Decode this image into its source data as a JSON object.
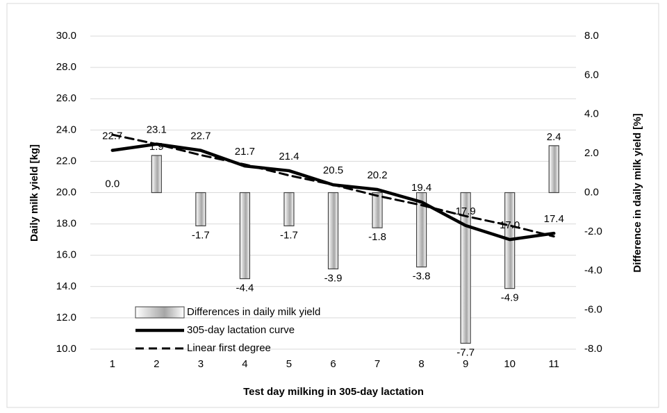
{
  "chart_data": {
    "type": "combo",
    "x_label": "Test day milking in 305-day lactation",
    "y_label": "Daily milk yield [kg]",
    "y2_label": "Difference in daily milk yield [%]",
    "categories": [
      "1",
      "2",
      "3",
      "4",
      "5",
      "6",
      "7",
      "8",
      "9",
      "10",
      "11"
    ],
    "ylim": [
      10,
      30
    ],
    "yticks": [
      {
        "value": 10,
        "label": "10.0"
      },
      {
        "value": 12,
        "label": "12.0"
      },
      {
        "value": 14,
        "label": "14.0"
      },
      {
        "value": 16,
        "label": "16.0"
      },
      {
        "value": 18,
        "label": "18.0"
      },
      {
        "value": 20,
        "label": "20.0"
      },
      {
        "value": 22,
        "label": "22.0"
      },
      {
        "value": 24,
        "label": "24.0"
      },
      {
        "value": 26,
        "label": "26.0"
      },
      {
        "value": 28,
        "label": "28.0"
      },
      {
        "value": 30,
        "label": "30.0"
      }
    ],
    "y2lim": [
      -8,
      8
    ],
    "y2ticks": [
      {
        "value": -8,
        "label": "-8.0"
      },
      {
        "value": -6,
        "label": "-6.0"
      },
      {
        "value": -4,
        "label": "-4.0"
      },
      {
        "value": -2,
        "label": "-2.0"
      },
      {
        "value": 0,
        "label": "0.0"
      },
      {
        "value": 2,
        "label": "2.0"
      },
      {
        "value": 4,
        "label": "4.0"
      },
      {
        "value": 6,
        "label": "6.0"
      },
      {
        "value": 8,
        "label": "8.0"
      }
    ],
    "grid": true,
    "legend": "lower left",
    "series": [
      {
        "name": "Differences in daily milk yield",
        "type": "bar",
        "axis": "y2",
        "color": "#a6a6a6",
        "values": [
          0.0,
          1.9,
          -1.7,
          -4.4,
          -1.7,
          -3.9,
          -1.8,
          -3.8,
          -7.7,
          -4.9,
          2.4
        ],
        "value_labels": [
          "0.0",
          "1.9",
          "-1.7",
          "-4.4",
          "-1.7",
          "-3.9",
          "-1.8",
          "-3.8",
          "-7.7",
          "-4.9",
          "2.4"
        ]
      },
      {
        "name": "305-day lactation curve",
        "type": "line",
        "line_style": "solid",
        "color": "#000000",
        "values": [
          22.7,
          23.1,
          22.7,
          21.7,
          21.4,
          20.5,
          20.2,
          19.4,
          17.9,
          17.0,
          17.4
        ],
        "value_labels": [
          "22.7",
          "23.1",
          "22.7",
          "21.7",
          "21.4",
          "20.5",
          "20.2",
          "19.4",
          "17.9",
          "17.0",
          "17.4"
        ]
      },
      {
        "name": "Linear first degree",
        "type": "line",
        "line_style": "dashed",
        "color": "#000000",
        "values": [
          23.7,
          23.1,
          22.4,
          21.8,
          21.1,
          20.5,
          19.8,
          19.2,
          18.5,
          17.9,
          17.2
        ]
      }
    ]
  }
}
